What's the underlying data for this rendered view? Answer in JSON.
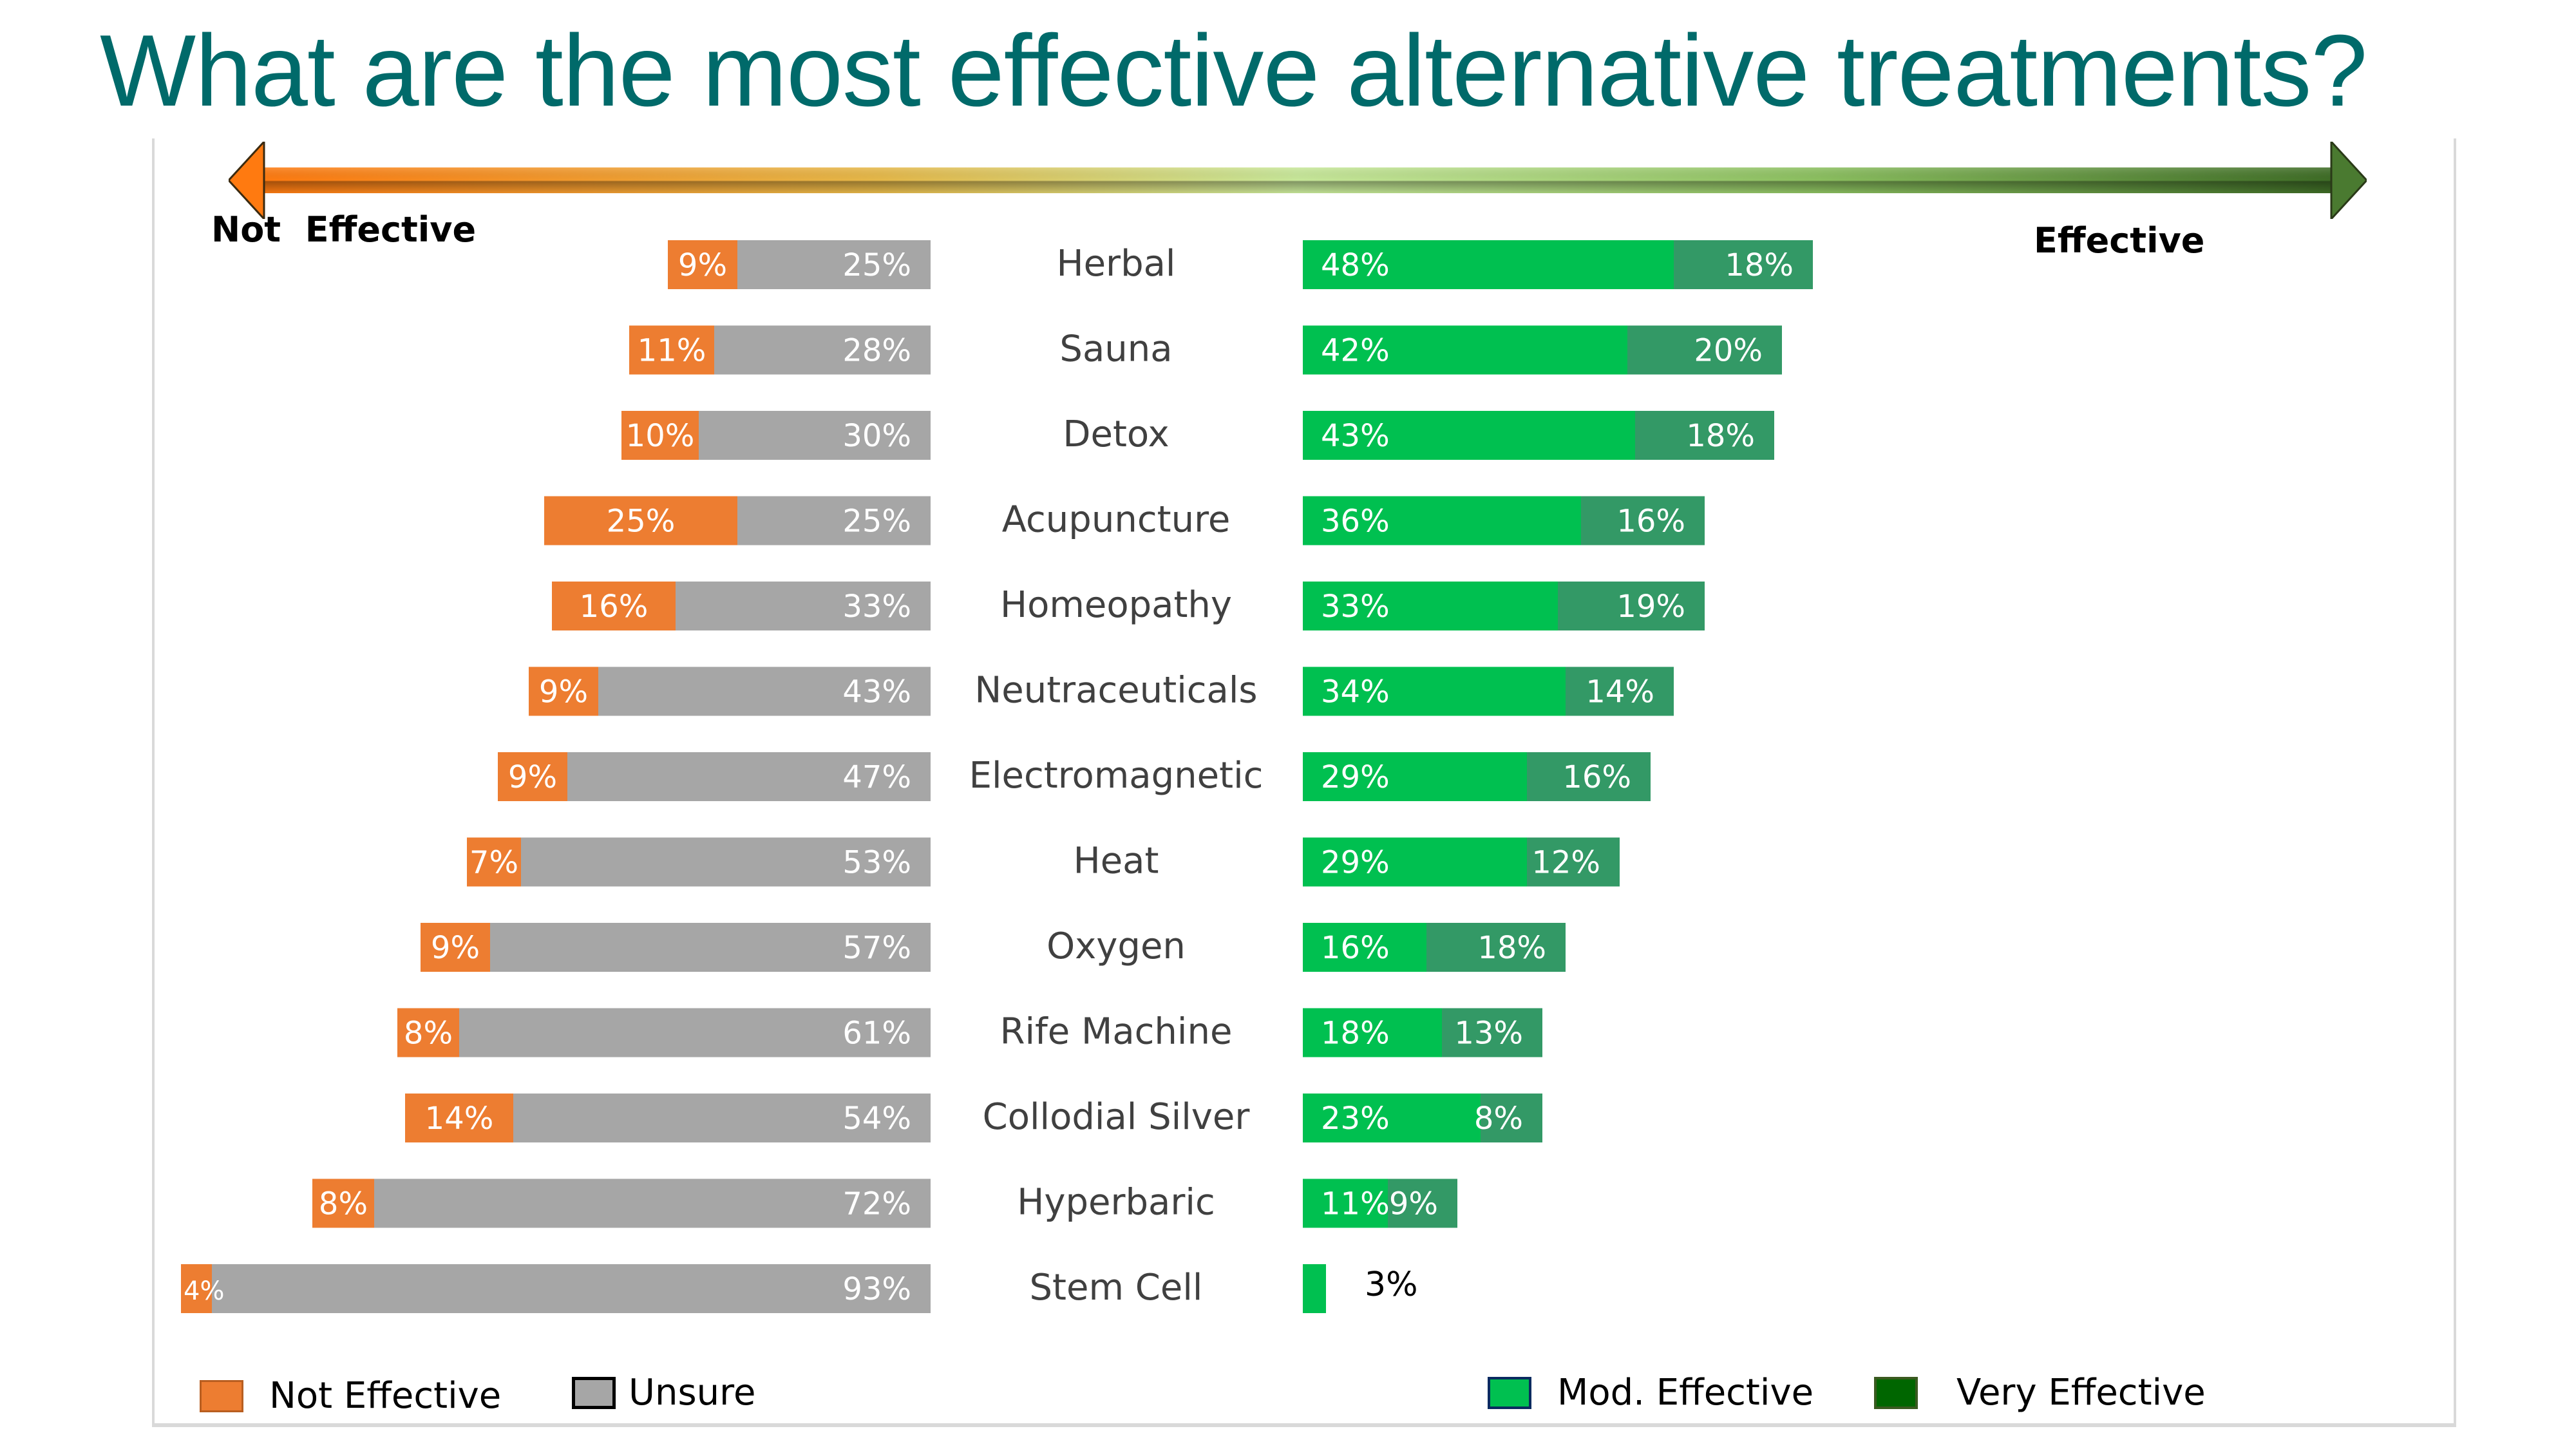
{
  "title": "What are the most effective alternative treatments?",
  "scale_labels": {
    "left": "Not  Effective",
    "right": "Effective"
  },
  "colors": {
    "not_effective": "#ed7d31",
    "unsure": "#a6a6a6",
    "mod_effective": "#00c050",
    "very_effective": "#339966",
    "legend_very_effective": "#006600",
    "title": "#006a6a"
  },
  "legend": [
    {
      "label": "Not Effective",
      "key": "not_effective"
    },
    {
      "label": "Unsure",
      "key": "unsure"
    },
    {
      "label": "Mod. Effective",
      "key": "mod_effective"
    },
    {
      "label": "Very Effective",
      "key": "legend_very_effective"
    }
  ],
  "chart_data": {
    "type": "bar",
    "orientation": "horizontal-diverging-stacked",
    "title": "What are the most effective alternative treatments?",
    "categories": [
      "Herbal",
      "Sauna",
      "Detox",
      "Acupuncture",
      "Homeopathy",
      "Neutraceuticals",
      "Electromagnetic",
      "Heat",
      "Oxygen",
      "Rife Machine",
      "Collodial Silver",
      "Hyperbaric",
      "Stem Cell"
    ],
    "series": [
      {
        "name": "Not Effective",
        "side": "left",
        "values": [
          9,
          11,
          10,
          25,
          16,
          9,
          9,
          7,
          9,
          8,
          14,
          8,
          4
        ]
      },
      {
        "name": "Unsure",
        "side": "left",
        "values": [
          25,
          28,
          30,
          25,
          33,
          43,
          47,
          53,
          57,
          61,
          54,
          72,
          93
        ]
      },
      {
        "name": "Mod. Effective",
        "side": "right",
        "values": [
          48,
          42,
          43,
          36,
          33,
          34,
          29,
          29,
          16,
          18,
          23,
          11,
          3
        ]
      },
      {
        "name": "Very Effective",
        "side": "right",
        "values": [
          18,
          20,
          18,
          16,
          19,
          14,
          16,
          12,
          18,
          13,
          8,
          9,
          0
        ]
      }
    ],
    "data_labels": {
      "Not Effective": [
        "9%",
        "11%",
        "10%",
        "25%",
        "16%",
        "9%",
        "9%",
        "7%",
        "9%",
        "8%",
        "14%",
        "8%",
        "4%"
      ],
      "Unsure": [
        "25%",
        "28%",
        "30%",
        "25%",
        "33%",
        "43%",
        "47%",
        "53%",
        "57%",
        "61%",
        "54%",
        "72%",
        "93%"
      ],
      "Mod. Effective": [
        "48%",
        "42%",
        "43%",
        "36%",
        "33%",
        "34%",
        "29%",
        "29%",
        "16%",
        "18%",
        "23%",
        "11%",
        "3%"
      ],
      "Very Effective": [
        "18%",
        "20%",
        "18%",
        "16%",
        "19%",
        "14%",
        "16%",
        "12%",
        "18%",
        "13%",
        "8%",
        "9%",
        ""
      ]
    },
    "xlabel": "",
    "ylabel": "",
    "legend_position": "bottom",
    "grid": false
  }
}
